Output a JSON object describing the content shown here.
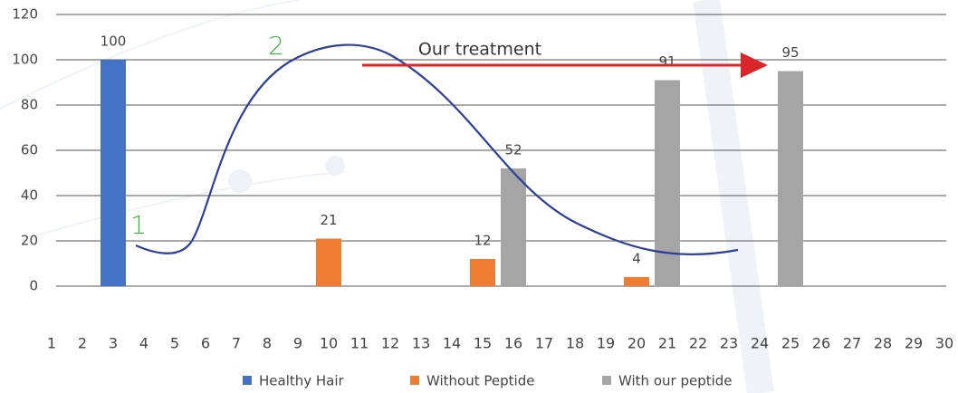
{
  "chart_data": {
    "type": "bar",
    "categories": [
      1,
      2,
      3,
      4,
      5,
      6,
      7,
      8,
      9,
      10,
      11,
      12,
      13,
      14,
      15,
      16,
      17,
      18,
      19,
      20,
      21,
      22,
      23,
      24,
      25,
      26,
      27,
      28,
      29,
      30
    ],
    "series": [
      {
        "name": "Healthy Hair",
        "color": "#4472c4",
        "values": [
          null,
          null,
          100,
          null,
          null,
          null,
          null,
          null,
          null,
          null,
          null,
          null,
          null,
          null,
          null,
          null,
          null,
          null,
          null,
          null,
          null,
          null,
          null,
          null,
          null,
          null,
          null,
          null,
          null,
          null
        ]
      },
      {
        "name": "Without Peptide",
        "color": "#ed7d31",
        "values": [
          null,
          null,
          null,
          null,
          null,
          null,
          null,
          null,
          null,
          21,
          null,
          null,
          null,
          null,
          12,
          null,
          null,
          null,
          null,
          4,
          null,
          null,
          null,
          null,
          null,
          null,
          null,
          null,
          null,
          null
        ]
      },
      {
        "name": "With our peptide",
        "color": "#a5a5a5",
        "values": [
          null,
          null,
          null,
          null,
          null,
          null,
          null,
          null,
          null,
          null,
          null,
          null,
          null,
          null,
          null,
          52,
          null,
          null,
          null,
          null,
          91,
          null,
          null,
          null,
          95,
          null,
          null,
          null,
          null,
          null
        ]
      }
    ],
    "ylim": [
      0,
      120
    ],
    "yticks": [
      0,
      20,
      40,
      60,
      80,
      100,
      120
    ],
    "grid": true,
    "annotations": [
      "1",
      "2",
      "Our treatment"
    ]
  }
}
